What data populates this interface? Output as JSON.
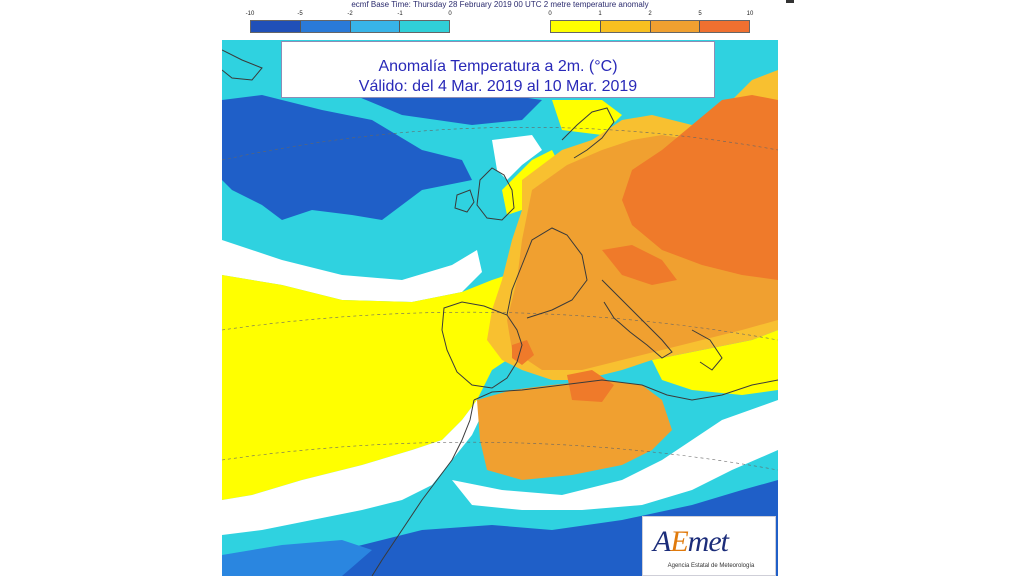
{
  "header": {
    "caption": "ecmf  Base Time: Thursday 28 February 2019 00 UTC 2 metre temperature anomaly"
  },
  "colorbar_cold": {
    "ticks": [
      "-10",
      "-5",
      "-2",
      "-1",
      "0"
    ],
    "colors": [
      "#2050b8",
      "#2a7ad8",
      "#38b4e8",
      "#30d0d8"
    ]
  },
  "colorbar_warm": {
    "ticks": [
      "0",
      "1",
      "2",
      "5",
      "10"
    ],
    "colors": [
      "#ffff00",
      "#f8c020",
      "#f0a030",
      "#f07030"
    ]
  },
  "title": {
    "line1": "Anomalía Temperatura a 2m. (°C)",
    "line2": "Válido: del 4 Mar. 2019 al 10 Mar. 2019"
  },
  "logo": {
    "name_prefix": "A",
    "name_accent": "E",
    "name_suffix": "met",
    "subtitle": "Agencia Estatal de Meteorología"
  },
  "map_colors": {
    "deep_blue": "#1f5fc8",
    "blue": "#2a86e0",
    "cyan": "#2fd2e0",
    "white": "#ffffff",
    "yellow": "#ffff00",
    "light_orange": "#f8c030",
    "orange": "#f0a030",
    "dark_orange": "#ef7a2a",
    "coast": "#3a3a3a"
  }
}
